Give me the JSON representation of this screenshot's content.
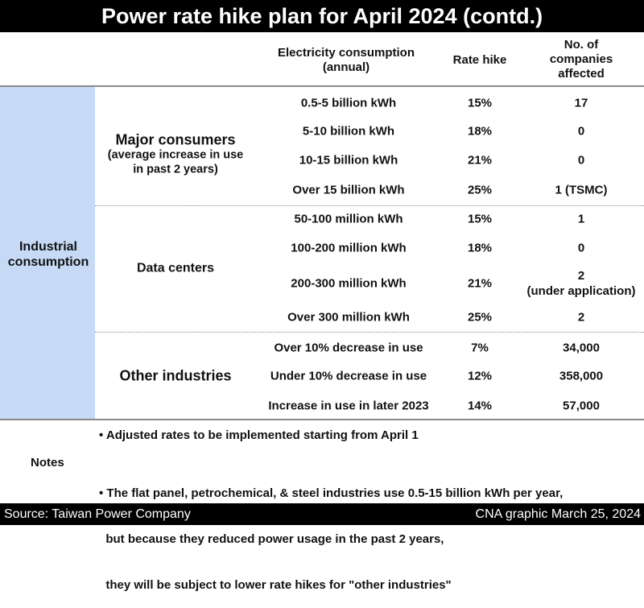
{
  "title": "Power rate hike plan for April 2024 (contd.)",
  "headers": {
    "consumption": [
      "Electricity consumption",
      "(annual)"
    ],
    "rate": "Rate hike",
    "companies": [
      "No. of",
      "companies",
      "affected"
    ]
  },
  "industrial_label": [
    "Industrial",
    "consumption"
  ],
  "groups": [
    {
      "name": "Major consumers",
      "subtitle": [
        "(average increase in use",
        "in past 2 years)"
      ],
      "rows": [
        {
          "consumption": "0.5-5 billion kWh",
          "rate": "15%",
          "companies": [
            "17"
          ]
        },
        {
          "consumption": "5-10 billion kWh",
          "rate": "18%",
          "companies": [
            "0"
          ]
        },
        {
          "consumption": "10-15 billion kWh",
          "rate": "21%",
          "companies": [
            "0"
          ]
        },
        {
          "consumption": "Over 15 billion kWh",
          "rate": "25%",
          "companies": [
            "1 (TSMC)"
          ]
        }
      ]
    },
    {
      "name": "Data centers",
      "subtitle": [],
      "rows": [
        {
          "consumption": "50-100 million kWh",
          "rate": "15%",
          "companies": [
            "1"
          ]
        },
        {
          "consumption": "100-200 million kWh",
          "rate": "18%",
          "companies": [
            "0"
          ]
        },
        {
          "consumption": "200-300 million kWh",
          "rate": "21%",
          "companies": [
            "2",
            "(under application)"
          ]
        },
        {
          "consumption": "Over 300 million kWh",
          "rate": "25%",
          "companies": [
            "2"
          ]
        }
      ]
    },
    {
      "name": "Other industries",
      "subtitle": [],
      "rows": [
        {
          "consumption": "Over 10% decrease in use",
          "rate": "7%",
          "companies": [
            "34,000"
          ]
        },
        {
          "consumption": "Under 10% decrease in use",
          "rate": "12%",
          "companies": [
            "358,000"
          ]
        },
        {
          "consumption": "Increase in use in later 2023",
          "rate": "14%",
          "companies": [
            "57,000"
          ]
        }
      ]
    }
  ],
  "notes": {
    "label": "Notes",
    "items": [
      [
        "• Adjusted rates to be implemented starting from April 1"
      ],
      [
        "• The flat panel, petrochemical, & steel industries use 0.5-15 billion kWh per year,",
        "  but because they reduced power usage in the past 2 years,",
        "  they will be subject to lower rate hikes for \"other industries\""
      ]
    ]
  },
  "footer": {
    "source": "Source: Taiwan Power Company",
    "credit": "CNA graphic March 25, 2024"
  }
}
